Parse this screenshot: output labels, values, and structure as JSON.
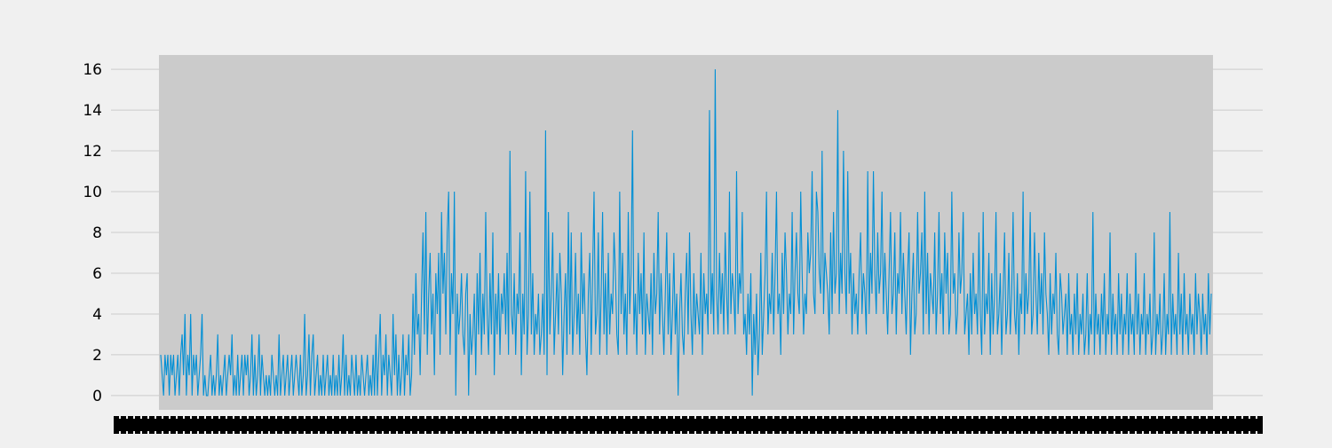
{
  "chart_data": {
    "type": "line",
    "title": "",
    "xlabel": "",
    "ylabel": "",
    "ylim": [
      -0.7,
      16.7
    ],
    "y_ticks": [
      "0",
      "2",
      "4",
      "6",
      "8",
      "10",
      "12",
      "14",
      "16"
    ],
    "x_tick_labels_overlapping": true,
    "grid": true,
    "legend": "none",
    "series": [
      {
        "color": "#008fd5",
        "values": [
          2,
          1,
          0,
          2,
          1,
          2,
          0,
          2,
          1,
          2,
          0,
          1,
          2,
          0,
          2,
          3,
          1,
          4,
          0,
          2,
          1,
          4,
          0,
          2,
          1,
          2,
          0,
          1,
          2,
          4,
          0,
          1,
          0,
          0,
          1,
          2,
          0,
          1,
          0,
          1,
          3,
          0,
          1,
          0,
          1,
          2,
          0,
          1,
          2,
          1,
          3,
          0,
          1,
          0,
          2,
          0,
          1,
          2,
          0,
          2,
          1,
          2,
          0,
          1,
          3,
          0,
          2,
          0,
          1,
          3,
          0,
          2,
          1,
          0,
          1,
          0,
          1,
          0,
          2,
          1,
          0,
          1,
          0,
          3,
          0,
          1,
          2,
          0,
          1,
          2,
          0,
          1,
          2,
          0,
          1,
          2,
          1,
          0,
          2,
          0,
          1,
          4,
          0,
          1,
          3,
          0,
          2,
          3,
          0,
          1,
          2,
          0,
          1,
          0,
          2,
          0,
          1,
          2,
          0,
          1,
          0,
          2,
          0,
          1,
          0,
          2,
          0,
          1,
          3,
          0,
          2,
          0,
          1,
          0,
          2,
          1,
          0,
          2,
          0,
          1,
          0,
          2,
          1,
          0,
          1,
          2,
          0,
          1,
          0,
          2,
          0,
          3,
          0,
          2,
          4,
          0,
          2,
          1,
          3,
          0,
          2,
          1,
          0,
          4,
          1,
          3,
          0,
          2,
          0,
          1,
          3,
          0,
          2,
          1,
          3,
          0,
          1,
          5,
          2,
          6,
          3,
          4,
          1,
          5,
          8,
          3,
          9,
          2,
          5,
          7,
          3,
          5,
          1,
          6,
          4,
          7,
          2,
          9,
          5,
          7,
          3,
          8,
          10,
          2,
          6,
          4,
          10,
          0,
          5,
          3,
          4,
          6,
          3,
          2,
          5,
          6,
          0,
          4,
          2,
          3,
          5,
          1,
          6,
          3,
          7,
          2,
          5,
          3,
          9,
          4,
          2,
          6,
          3,
          8,
          1,
          5,
          3,
          6,
          2,
          5,
          4,
          6,
          3,
          7,
          2,
          12,
          4,
          3,
          6,
          2,
          5,
          4,
          8,
          1,
          5,
          3,
          11,
          2,
          4,
          10,
          3,
          6,
          2,
          4,
          3,
          5,
          2,
          3,
          5,
          2,
          13,
          1,
          9,
          3,
          5,
          8,
          2,
          4,
          6,
          3,
          7,
          5,
          1,
          4,
          6,
          2,
          9,
          3,
          8,
          2,
          4,
          7,
          3,
          5,
          2,
          8,
          4,
          6,
          3,
          1,
          5,
          7,
          2,
          6,
          10,
          3,
          4,
          8,
          2,
          5,
          9,
          3,
          6,
          2,
          7,
          3,
          5,
          4,
          8,
          6,
          3,
          2,
          10,
          4,
          7,
          3,
          5,
          2,
          9,
          4,
          6,
          13,
          3,
          5,
          2,
          7,
          4,
          6,
          3,
          8,
          2,
          5,
          4,
          3,
          6,
          2,
          7,
          4,
          5,
          9,
          3,
          6,
          4,
          2,
          5,
          8,
          3,
          6,
          2,
          4,
          7,
          3,
          5,
          0,
          4,
          6,
          3,
          2,
          5,
          7,
          3,
          8,
          4,
          2,
          6,
          3,
          5,
          4,
          3,
          7,
          2,
          6,
          4,
          5,
          3,
          14,
          4,
          6,
          3,
          16,
          5,
          3,
          7,
          4,
          6,
          3,
          8,
          5,
          3,
          10,
          4,
          6,
          5,
          3,
          11,
          4,
          6,
          5,
          9,
          3,
          4,
          2,
          5,
          3,
          6,
          0,
          4,
          2,
          5,
          1,
          3,
          7,
          2,
          4,
          6,
          10,
          3,
          5,
          4,
          7,
          3,
          6,
          10,
          4,
          5,
          2,
          7,
          4,
          8,
          6,
          3,
          5,
          4,
          9,
          3,
          6,
          8,
          5,
          4,
          10,
          6,
          3,
          5,
          4,
          8,
          6,
          7,
          11,
          5,
          4,
          10,
          9,
          6,
          5,
          12,
          4,
          7,
          6,
          5,
          3,
          8,
          4,
          9,
          5,
          6,
          14,
          4,
          7,
          5,
          12,
          6,
          4,
          11,
          5,
          7,
          3,
          6,
          4,
          5,
          3,
          6,
          8,
          4,
          6,
          5,
          3,
          11,
          4,
          7,
          5,
          11,
          6,
          4,
          8,
          5,
          6,
          10,
          4,
          7,
          5,
          3,
          6,
          9,
          4,
          5,
          8,
          3,
          6,
          5,
          9,
          4,
          7,
          5,
          3,
          6,
          8,
          2,
          5,
          7,
          3,
          4,
          9,
          5,
          6,
          8,
          3,
          10,
          4,
          7,
          3,
          6,
          5,
          4,
          8,
          3,
          5,
          9,
          4,
          6,
          3,
          8,
          5,
          7,
          3,
          4,
          10,
          5,
          6,
          3,
          4,
          8,
          5,
          6,
          9,
          3,
          4,
          5,
          2,
          6,
          3,
          7,
          4,
          5,
          3,
          8,
          4,
          2,
          9,
          3,
          5,
          4,
          7,
          2,
          6,
          3,
          5,
          9,
          3,
          4,
          6,
          2,
          5,
          8,
          3,
          4,
          7,
          3,
          5,
          9,
          4,
          3,
          6,
          2,
          5,
          4,
          10,
          3,
          6,
          4,
          5,
          9,
          3,
          4,
          8,
          5,
          3,
          7,
          4,
          6,
          3,
          8,
          5,
          4,
          2,
          6,
          3,
          5,
          4,
          7,
          3,
          2,
          6,
          5,
          3,
          4,
          5,
          2,
          6,
          3,
          4,
          2,
          5,
          3,
          6,
          2,
          4,
          3,
          5,
          2,
          3,
          6,
          2,
          4,
          3,
          9,
          2,
          5,
          3,
          4,
          2,
          5,
          3,
          6,
          2,
          4,
          3,
          8,
          2,
          5,
          3,
          4,
          2,
          6,
          3,
          5,
          2,
          4,
          3,
          6,
          2,
          5,
          3,
          4,
          2,
          7,
          3,
          5,
          2,
          4,
          3,
          6,
          2,
          4,
          3,
          5,
          2,
          3,
          8,
          2,
          4,
          3,
          5,
          2,
          3,
          6,
          2,
          4,
          3,
          9,
          2,
          5,
          3,
          4,
          2,
          7,
          3,
          5,
          2,
          6,
          3,
          4,
          2,
          5,
          3,
          4,
          2,
          6,
          3,
          5,
          4,
          2,
          5,
          3,
          4,
          2,
          6,
          3,
          5
        ]
      }
    ]
  }
}
